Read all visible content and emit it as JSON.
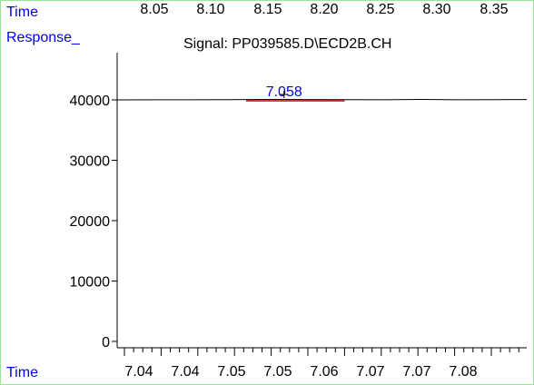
{
  "header": {
    "time_label": "Time",
    "top_ticks": [
      "8.05",
      "8.10",
      "8.15",
      "8.20",
      "8.25",
      "8.30",
      "8.35"
    ],
    "response_label": "Response_",
    "signal_title": "Signal: PP039585.D\\ECD2B.CH"
  },
  "footer": {
    "time_label": "Time"
  },
  "colors": {
    "axis_label": "#0000ee",
    "trace": "#000000",
    "peak_marker": "#cc0000",
    "frame": "#9be69b"
  },
  "chart_data": {
    "type": "line",
    "title": "Signal: PP039585.D\\ECD2B.CH",
    "xlabel": "Time",
    "ylabel": "Response_",
    "x_tick_labels": [
      "7.04",
      "7.04",
      "7.05",
      "7.05",
      "7.06",
      "7.07",
      "7.07",
      "7.08"
    ],
    "y_ticks": [
      0,
      10000,
      20000,
      30000,
      40000
    ],
    "xlim": [
      7.036,
      7.09
    ],
    "ylim": [
      -1500,
      49000
    ],
    "series": [
      {
        "x": [
          7.036,
          7.041,
          7.046,
          7.051,
          7.056,
          7.061,
          7.066,
          7.071,
          7.076,
          7.081,
          7.086,
          7.09
        ],
        "y": [
          40000,
          40020,
          40010,
          40050,
          40080,
          40060,
          40040,
          40010,
          40070,
          40020,
          40050,
          40060
        ]
      }
    ],
    "annotations": [
      {
        "text": "7.058",
        "x": 7.058,
        "y": 40000
      }
    ],
    "peak_baseline": {
      "x_start": 7.053,
      "x_end": 7.066,
      "y": 40000
    }
  }
}
